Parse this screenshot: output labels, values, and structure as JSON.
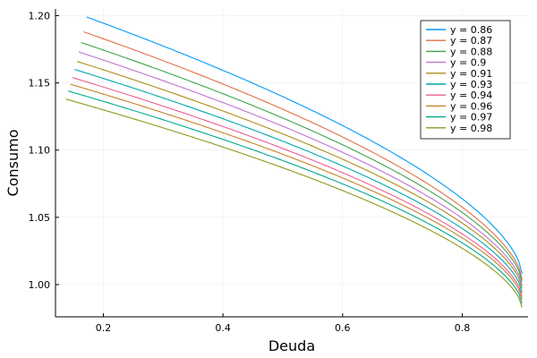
{
  "chart_data": {
    "type": "line",
    "title": "",
    "xlabel": "Deuda",
    "ylabel": "Consumo",
    "xlim": [
      0.12,
      0.91
    ],
    "ylim": [
      0.976,
      1.205
    ],
    "x_ticks": [
      0.2,
      0.4,
      0.6,
      0.8
    ],
    "x_tick_labels": [
      "0.2",
      "0.4",
      "0.6",
      "0.8"
    ],
    "y_ticks": [
      1.0,
      1.05,
      1.1,
      1.15,
      1.2
    ],
    "y_tick_labels": [
      "1.00",
      "1.05",
      "1.10",
      "1.15",
      "1.20"
    ],
    "grid": true,
    "legend_position": "top-right",
    "x_end": 0.9,
    "series": [
      {
        "name": "y = 0.86",
        "color": "#009AF9",
        "x_start": 0.172,
        "y_start": 1.199,
        "y_end": 1.008
      },
      {
        "name": "y = 0.87",
        "color": "#E26F46",
        "x_start": 0.167,
        "y_start": 1.188,
        "y_end": 1.004
      },
      {
        "name": "y = 0.88",
        "color": "#3DA44D",
        "x_start": 0.163,
        "y_start": 1.18,
        "y_end": 1.002
      },
      {
        "name": "y = 0.9",
        "color": "#C271D2",
        "x_start": 0.159,
        "y_start": 1.173,
        "y_end": 0.999
      },
      {
        "name": "y = 0.91",
        "color": "#AC8D18",
        "x_start": 0.156,
        "y_start": 1.166,
        "y_end": 0.997
      },
      {
        "name": "y = 0.93",
        "color": "#00A9AD",
        "x_start": 0.152,
        "y_start": 1.16,
        "y_end": 0.994
      },
      {
        "name": "y = 0.94",
        "color": "#ED5E93",
        "x_start": 0.148,
        "y_start": 1.154,
        "y_end": 0.991
      },
      {
        "name": "y = 0.96",
        "color": "#C68125",
        "x_start": 0.145,
        "y_start": 1.149,
        "y_end": 0.989
      },
      {
        "name": "y = 0.97",
        "color": "#00A98D",
        "x_start": 0.141,
        "y_start": 1.144,
        "y_end": 0.986
      },
      {
        "name": "y = 0.98",
        "color": "#8E971D",
        "x_start": 0.137,
        "y_start": 1.138,
        "y_end": 0.983
      }
    ]
  }
}
